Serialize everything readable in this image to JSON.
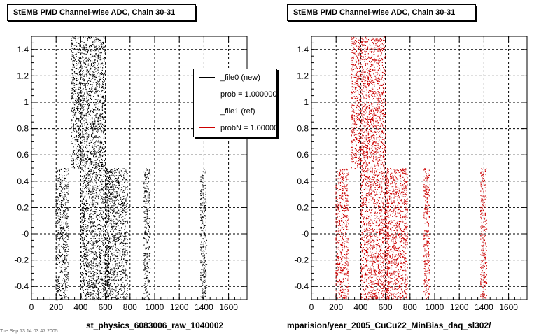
{
  "pads": [
    {
      "title": "StEMB PMD Channel-wise ADC, Chain 30-31",
      "xcaption": "st_physics_6083006_raw_1040002",
      "series_color": "#000000"
    },
    {
      "title": "StEMB PMD Channel-wise ADC, Chain 30-31",
      "xcaption": "mparision/year_2005_CuCu22_MinBias_daq_sl302/",
      "series_color": "#cc0000"
    }
  ],
  "legend": {
    "entries": [
      {
        "label": "_file0 (new)",
        "color": "#000000"
      },
      {
        "label": "prob = 1.000000",
        "color": "#000000"
      },
      {
        "label": "_file1 (ref)",
        "color": "#cc0000"
      },
      {
        "label": "probN = 1.000000",
        "color": "#cc0000"
      }
    ]
  },
  "footer": "Tue Sep 13 14:03:47 2005",
  "chart_data": {
    "type": "scatter",
    "xlim": [
      0,
      1750
    ],
    "ylim": [
      -0.5,
      1.5
    ],
    "x_ticks": [
      0,
      200,
      400,
      600,
      800,
      1000,
      1200,
      1400,
      1600
    ],
    "y_ticks": [
      1.4,
      1.2,
      1,
      0.8,
      0.6,
      0.4,
      0.2,
      0,
      -0.2,
      -0.4
    ],
    "y_tick_labels": [
      "1.4",
      "1.2",
      "1",
      "0.8",
      "0.6",
      "0.4",
      "0.2",
      "-0",
      "-0.2",
      "-0.4"
    ],
    "grid": true,
    "legend_position": "top-right",
    "series": [
      {
        "name": "_file0 (new)",
        "color": "#000000"
      },
      {
        "name": "_file1 (ref)",
        "color": "#cc0000"
      }
    ],
    "bands": [
      {
        "x": [
          195,
          300
        ],
        "y": [
          -0.5,
          0.5
        ]
      },
      {
        "x": [
          320,
          600
        ],
        "y": [
          0.5,
          1.5
        ]
      },
      {
        "x": [
          400,
          630
        ],
        "y": [
          -0.5,
          0.5
        ]
      },
      {
        "x": [
          600,
          780
        ],
        "y": [
          -0.5,
          0.5
        ]
      },
      {
        "x": [
          910,
          960
        ],
        "y": [
          -0.5,
          0.5
        ]
      },
      {
        "x": [
          1370,
          1420
        ],
        "y": [
          -0.5,
          0.5
        ]
      }
    ]
  }
}
